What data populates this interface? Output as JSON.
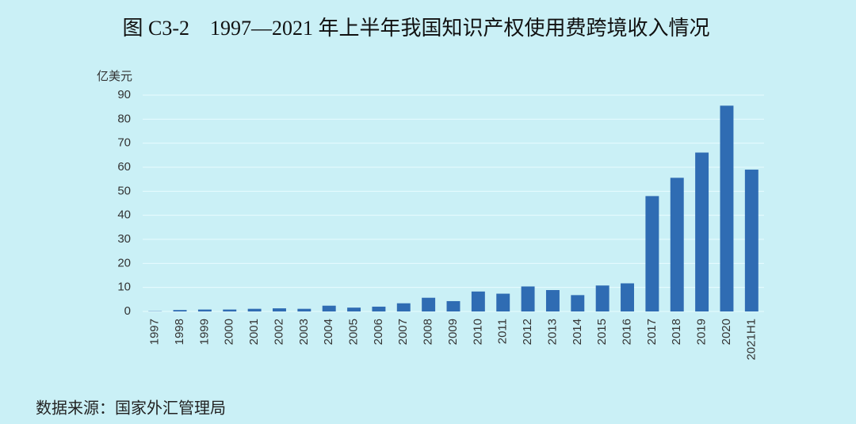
{
  "chart_data": {
    "type": "bar",
    "title": "图 C3-2　1997—2021 年上半年我国知识产权使用费跨境收入情况",
    "y_unit": "亿美元",
    "source": "数据来源：国家外汇管理局",
    "categories": [
      "1997",
      "1998",
      "1999",
      "2000",
      "2001",
      "2002",
      "2003",
      "2004",
      "2005",
      "2006",
      "2007",
      "2008",
      "2009",
      "2010",
      "2011",
      "2012",
      "2013",
      "2014",
      "2015",
      "2016",
      "2017",
      "2018",
      "2019",
      "2020",
      "2021H1"
    ],
    "values": [
      0.1,
      0.6,
      0.8,
      0.8,
      1.1,
      1.3,
      1.1,
      2.4,
      1.6,
      2.0,
      3.4,
      5.7,
      4.3,
      8.3,
      7.4,
      10.4,
      8.9,
      6.8,
      10.8,
      11.7,
      48.0,
      55.6,
      66.1,
      85.6,
      59.0
    ],
    "color": "#2f6cb3",
    "ylim": [
      0,
      90
    ],
    "yticks": [
      0,
      10,
      20,
      30,
      40,
      50,
      60,
      70,
      80,
      90
    ],
    "grid": true
  }
}
